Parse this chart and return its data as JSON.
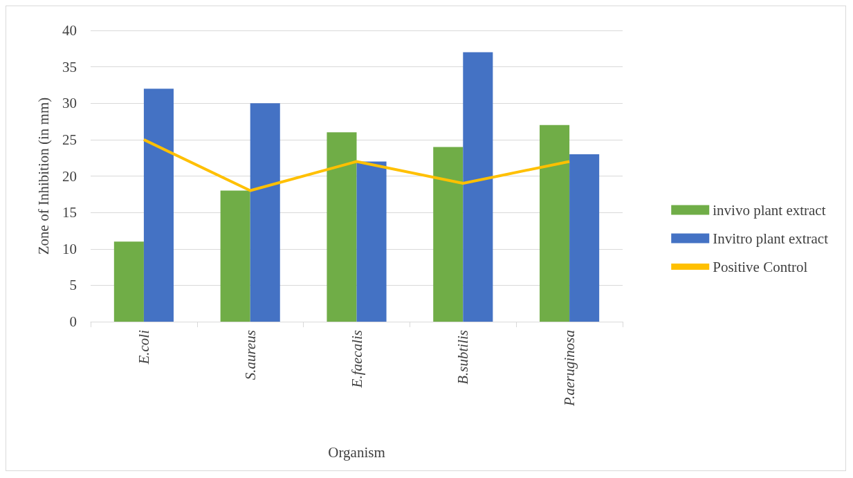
{
  "chart_data": {
    "type": "bar",
    "xlabel": "Organism",
    "ylabel": "Zone of Inhibition (in mm)",
    "categories": [
      "E.coli",
      "S.aureus",
      "E.faecalis",
      "B.subtilis",
      "P.aeruginosa"
    ],
    "series": [
      {
        "name": "invivo plant extract",
        "color": "#70ad47",
        "values": [
          11,
          18,
          26,
          24,
          27
        ]
      },
      {
        "name": "Invitro plant extract",
        "color": "#4472c4",
        "values": [
          32,
          30,
          22,
          37,
          23
        ]
      },
      {
        "name": "Positive Control",
        "type": "line",
        "color": "#ffc000",
        "values": [
          25,
          18,
          22,
          19,
          22
        ]
      }
    ],
    "ylim": [
      0,
      40
    ],
    "yticks": [
      0,
      5,
      10,
      15,
      20,
      25,
      30,
      35,
      40
    ],
    "grid": "y",
    "legend": "right",
    "marker": "none"
  }
}
